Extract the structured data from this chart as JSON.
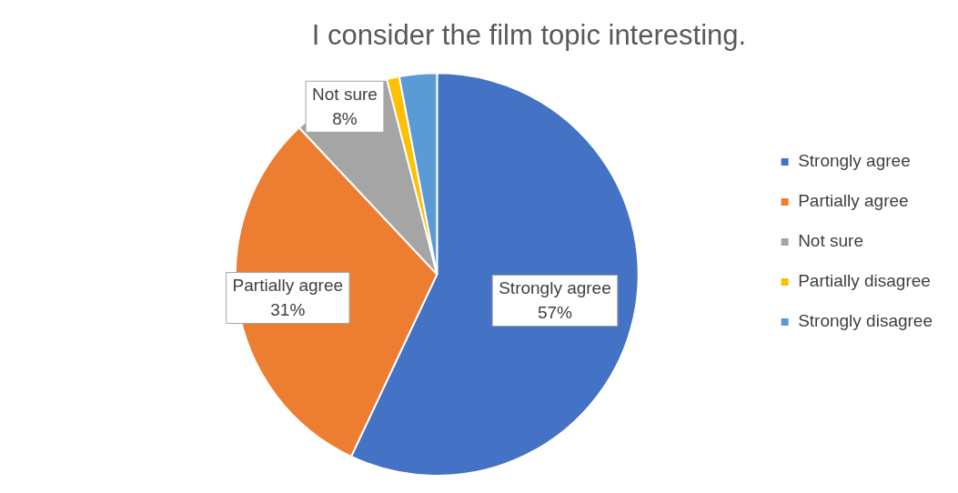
{
  "chart_data": {
    "type": "pie",
    "title": "I consider the film topic interesting.",
    "categories": [
      "Strongly agree",
      "Partially agree",
      "Not sure",
      "Partially disagree",
      "Strongly disagree"
    ],
    "values": [
      57,
      31,
      8,
      1,
      3
    ],
    "colors": [
      "#4472c4",
      "#ed7d31",
      "#a5a5a5",
      "#ffc000",
      "#5b9bd5"
    ],
    "value_labels": [
      "57%",
      "31%",
      "8%",
      null,
      null
    ],
    "legend": "right"
  }
}
